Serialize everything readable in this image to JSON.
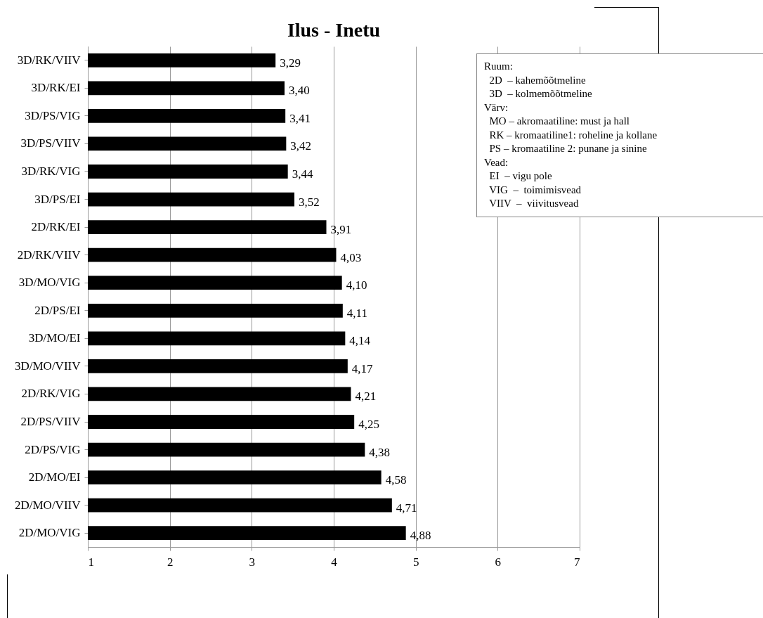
{
  "chart_data": {
    "type": "bar",
    "orientation": "horizontal",
    "title": "Ilus - Inetu",
    "categories": [
      "3D/RK/VIIV",
      "3D/RK/EI",
      "3D/PS/VIG",
      "3D/PS/VIIV",
      "3D/RK/VIG",
      "3D/PS/EI",
      "2D/RK/EI",
      "2D/RK/VIIV",
      "3D/MO/VIG",
      "2D/PS/EI",
      "3D/MO/EI",
      "3D/MO/VIIV",
      "2D/RK/VIG",
      "2D/PS/VIIV",
      "2D/PS/VIG",
      "2D/MO/EI",
      "2D/MO/VIIV",
      "2D/MO/VIG"
    ],
    "values": [
      3.29,
      3.4,
      3.41,
      3.42,
      3.44,
      3.52,
      3.91,
      4.03,
      4.1,
      4.11,
      4.14,
      4.17,
      4.21,
      4.25,
      4.38,
      4.58,
      4.71,
      4.88
    ],
    "value_labels": [
      "3,29",
      "3,40",
      "3,41",
      "3,42",
      "3,44",
      "3,52",
      "3,91",
      "4,03",
      "4,10",
      "4,11",
      "4,14",
      "4,17",
      "4,21",
      "4,25",
      "4,38",
      "4,58",
      "4,71",
      "4,88"
    ],
    "color": "#000000",
    "xlim": [
      1,
      7
    ],
    "xticks": [
      1,
      2,
      3,
      4,
      5,
      6,
      7
    ],
    "grid": "x",
    "annotations": [
      "Ruum:",
      "  2D  – kahemõõtmeline",
      "  3D  – kolmemõõtmeline",
      "Värv:",
      "  MO – akromaatiline: must ja hall",
      "  RK – kromaatiline1: roheline ja kollane",
      "  PS – kromaatiline 2: punane ja sinine",
      "Vead:",
      "  EI  – vigu pole",
      "  VIG  –  toimimisvead",
      "  VIIV  –  viivitusvead"
    ]
  }
}
